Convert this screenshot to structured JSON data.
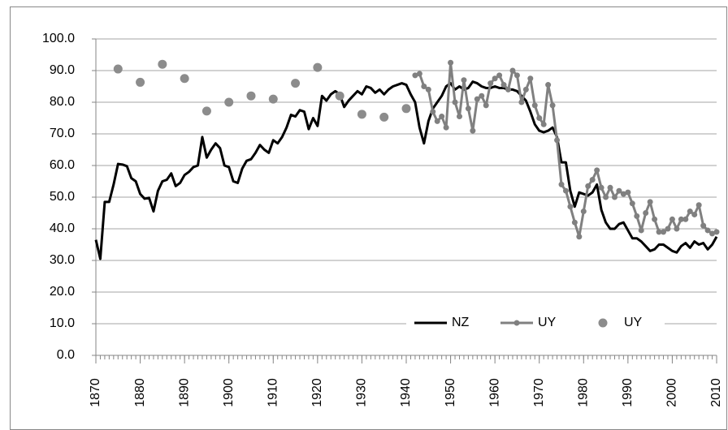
{
  "chart_data": {
    "type": "line",
    "series": [
      {
        "name": "NZ",
        "color": "#000000",
        "style": "line",
        "x": [
          1870,
          1871,
          1872,
          1873,
          1874,
          1875,
          1876,
          1877,
          1878,
          1879,
          1880,
          1881,
          1882,
          1883,
          1884,
          1885,
          1886,
          1887,
          1888,
          1889,
          1890,
          1891,
          1892,
          1893,
          1894,
          1895,
          1896,
          1897,
          1898,
          1899,
          1900,
          1901,
          1902,
          1903,
          1904,
          1905,
          1906,
          1907,
          1908,
          1909,
          1910,
          1911,
          1912,
          1913,
          1914,
          1915,
          1916,
          1917,
          1918,
          1919,
          1920,
          1921,
          1922,
          1923,
          1924,
          1925,
          1926,
          1927,
          1928,
          1929,
          1930,
          1931,
          1932,
          1933,
          1934,
          1935,
          1936,
          1937,
          1938,
          1939,
          1940,
          1941,
          1942,
          1943,
          1944,
          1945,
          1946,
          1947,
          1948,
          1949,
          1950,
          1951,
          1952,
          1953,
          1954,
          1955,
          1956,
          1957,
          1958,
          1959,
          1960,
          1961,
          1962,
          1963,
          1964,
          1965,
          1966,
          1967,
          1968,
          1969,
          1970,
          1971,
          1972,
          1973,
          1974,
          1975,
          1976,
          1977,
          1978,
          1979,
          1980,
          1981,
          1982,
          1983,
          1984,
          1985,
          1986,
          1987,
          1988,
          1989,
          1990,
          1991,
          1992,
          1993,
          1994,
          1995,
          1996,
          1997,
          1998,
          1999,
          2000,
          2001,
          2002,
          2003,
          2004,
          2005,
          2006,
          2007,
          2008,
          2009,
          2010
        ],
        "values": [
          36.5,
          30.5,
          48.5,
          48.5,
          54,
          60.5,
          60.3,
          59.8,
          56,
          55,
          51,
          49.5,
          49.8,
          45.5,
          52,
          55,
          55.5,
          57.5,
          53.5,
          54.5,
          57,
          58,
          59.5,
          60,
          69,
          62.5,
          65,
          67,
          65.5,
          60,
          59.5,
          55,
          54.5,
          59,
          61.5,
          62,
          64,
          66.5,
          65,
          64,
          68,
          67,
          69,
          72,
          76,
          75.5,
          77.5,
          77,
          71.5,
          75,
          72.5,
          82,
          80.5,
          82.5,
          83.5,
          82.5,
          78.5,
          80.5,
          82,
          83.5,
          82.5,
          85,
          84.5,
          83,
          84,
          82.5,
          84,
          85,
          85.5,
          86,
          85.5,
          82.5,
          80,
          72,
          67,
          74,
          78,
          80,
          82,
          85,
          86,
          84,
          85,
          84,
          84.5,
          86.5,
          86,
          85,
          84.5,
          84.5,
          85,
          84.5,
          84.5,
          84,
          84,
          83.5,
          82,
          80.5,
          77,
          73,
          71,
          70.5,
          71,
          72,
          69,
          61,
          61,
          52,
          47,
          51.5,
          51,
          50.5,
          51.5,
          54,
          46,
          42,
          40,
          40,
          41.5,
          42,
          39.5,
          37,
          37,
          36,
          34.5,
          33,
          33.5,
          35,
          35,
          34,
          33,
          32.5,
          34.5,
          35.5,
          34,
          36,
          35,
          35.5,
          33.5,
          35,
          37.5
        ]
      },
      {
        "name": "UY",
        "color": "#808080",
        "style": "line-markers",
        "x": [
          1942,
          1943,
          1944,
          1945,
          1946,
          1947,
          1948,
          1949,
          1950,
          1951,
          1952,
          1953,
          1954,
          1955,
          1956,
          1957,
          1958,
          1959,
          1960,
          1961,
          1962,
          1963,
          1964,
          1965,
          1966,
          1967,
          1968,
          1969,
          1970,
          1971,
          1972,
          1973,
          1974,
          1975,
          1976,
          1977,
          1978,
          1979,
          1980,
          1981,
          1982,
          1983,
          1984,
          1985,
          1986,
          1987,
          1988,
          1989,
          1990,
          1991,
          1992,
          1993,
          1994,
          1995,
          1996,
          1997,
          1998,
          1999,
          2000,
          2001,
          2002,
          2003,
          2004,
          2005,
          2006,
          2007,
          2008,
          2009,
          2010
        ],
        "values": [
          88.5,
          89,
          85,
          84,
          77,
          74,
          75.5,
          72,
          92.5,
          80,
          75.5,
          87,
          78,
          71,
          81,
          82,
          79,
          86,
          87.5,
          88.5,
          85.5,
          84,
          90,
          88.5,
          80,
          84,
          87.5,
          79,
          75,
          73,
          85.5,
          79,
          68,
          54,
          52,
          47,
          42,
          37.5,
          45.5,
          53.5,
          55.5,
          58.5,
          53,
          50,
          53,
          50,
          52,
          51,
          51.5,
          48,
          44,
          39.5,
          45,
          48.5,
          43,
          39,
          39,
          40,
          43,
          40,
          43,
          43,
          45.5,
          44.5,
          47.5,
          41,
          39.5,
          38.5,
          39
        ]
      },
      {
        "name": "UY",
        "color": "#8c8c8c",
        "style": "markers",
        "x": [
          1875,
          1880,
          1885,
          1890,
          1895,
          1900,
          1905,
          1910,
          1915,
          1920,
          1925,
          1930,
          1935,
          1940
        ],
        "values": [
          90.5,
          86.3,
          92,
          87.5,
          77.2,
          80,
          82,
          81,
          86,
          91,
          82,
          76.2,
          75.3,
          78
        ]
      }
    ],
    "xlim": [
      1870,
      2010
    ],
    "xticks": [
      1870,
      1880,
      1890,
      1900,
      1910,
      1920,
      1930,
      1940,
      1950,
      1960,
      1970,
      1980,
      1990,
      2000,
      2010
    ],
    "x_minor_step": 1,
    "ylim": [
      0,
      100
    ],
    "yticks": [
      {
        "value": 0,
        "label": "0.0"
      },
      {
        "value": 10,
        "label": "10.0"
      },
      {
        "value": 20,
        "label": "20.0"
      },
      {
        "value": 30,
        "label": "30.0"
      },
      {
        "value": 40,
        "label": "40.0"
      },
      {
        "value": 50,
        "label": "50.0"
      },
      {
        "value": 60,
        "label": "60.0"
      },
      {
        "value": 70,
        "label": "70.0"
      },
      {
        "value": 80,
        "label": "80.0"
      },
      {
        "value": 90,
        "label": "90.0"
      },
      {
        "value": 100,
        "label": "100.0"
      }
    ],
    "grid": true,
    "legend": "lower right"
  }
}
